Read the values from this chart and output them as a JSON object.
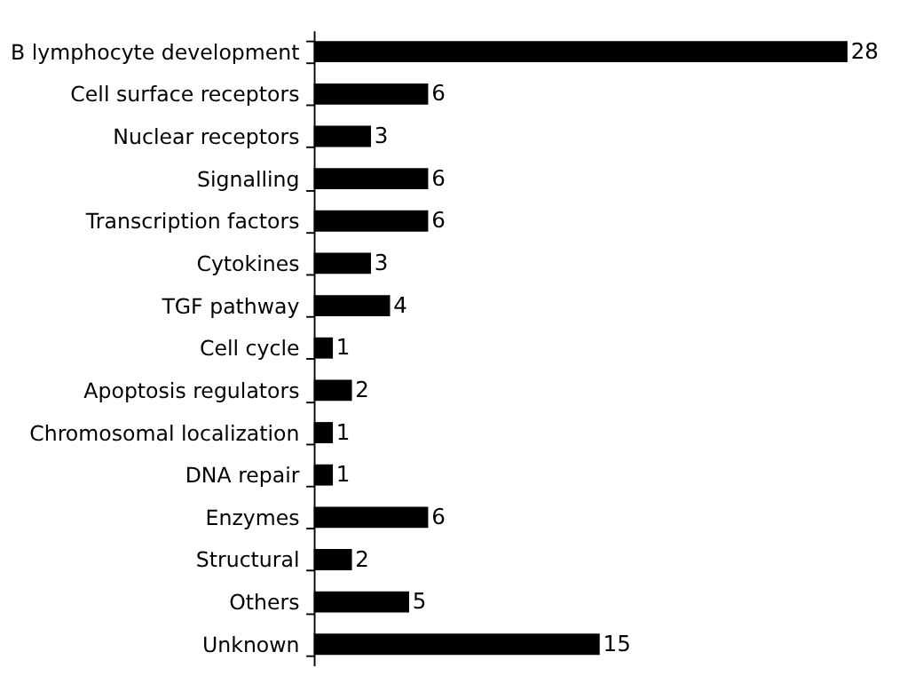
{
  "chart_data": {
    "type": "bar",
    "orientation": "horizontal",
    "data_labels": true,
    "categories": [
      "B lymphocyte development",
      "Cell surface receptors",
      "Nuclear receptors",
      "Signalling",
      "Transcription factors",
      "Cytokines",
      "TGF pathway",
      "Cell cycle",
      "Apoptosis regulators",
      "Chromosomal localization",
      "DNA repair",
      "Enzymes",
      "Structural",
      "Others",
      "Unknown"
    ],
    "values": [
      28,
      6,
      3,
      6,
      6,
      3,
      4,
      1,
      2,
      1,
      1,
      6,
      2,
      5,
      15
    ],
    "color": "#000000"
  }
}
